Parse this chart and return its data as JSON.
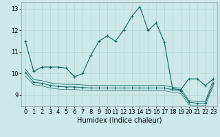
{
  "xlabel": "Humidex (Indice chaleur)",
  "bg_color": "#cce8e8",
  "line_color": "#1a6b6b",
  "grid_color": "#b8d8d8",
  "xlim": [
    -0.5,
    23.5
  ],
  "ylim": [
    8.5,
    13.3
  ],
  "yticks": [
    9,
    10,
    11,
    12,
    13
  ],
  "xticks": [
    0,
    1,
    2,
    3,
    4,
    5,
    6,
    7,
    8,
    9,
    10,
    11,
    12,
    13,
    14,
    15,
    16,
    17,
    18,
    19,
    20,
    21,
    22,
    23
  ],
  "series1_y": [
    11.5,
    10.1,
    10.3,
    10.3,
    10.3,
    10.25,
    9.85,
    10.0,
    10.85,
    11.5,
    11.75,
    11.5,
    12.0,
    12.65,
    13.1,
    12.0,
    12.35,
    11.45,
    9.3,
    9.25,
    9.75,
    9.75,
    9.45,
    9.75
  ],
  "series2_y": [
    10.05,
    9.6,
    9.55,
    9.45,
    9.4,
    9.38,
    9.38,
    9.35,
    9.33,
    9.33,
    9.33,
    9.33,
    9.33,
    9.33,
    9.33,
    9.33,
    9.33,
    9.33,
    9.25,
    9.2,
    8.68,
    8.62,
    8.62,
    9.55
  ],
  "series3_y": [
    10.2,
    9.72,
    9.67,
    9.57,
    9.52,
    9.5,
    9.5,
    9.47,
    9.45,
    9.45,
    9.45,
    9.45,
    9.45,
    9.45,
    9.45,
    9.45,
    9.45,
    9.45,
    9.37,
    9.32,
    8.75,
    8.7,
    8.7,
    9.72
  ],
  "series4_y": [
    9.88,
    9.48,
    9.43,
    9.33,
    9.28,
    9.26,
    9.26,
    9.23,
    9.21,
    9.21,
    9.21,
    9.21,
    9.21,
    9.21,
    9.21,
    9.21,
    9.21,
    9.21,
    9.13,
    9.08,
    8.56,
    8.5,
    8.5,
    9.43
  ],
  "xlabel_fontsize": 7,
  "tick_fontsize": 6
}
